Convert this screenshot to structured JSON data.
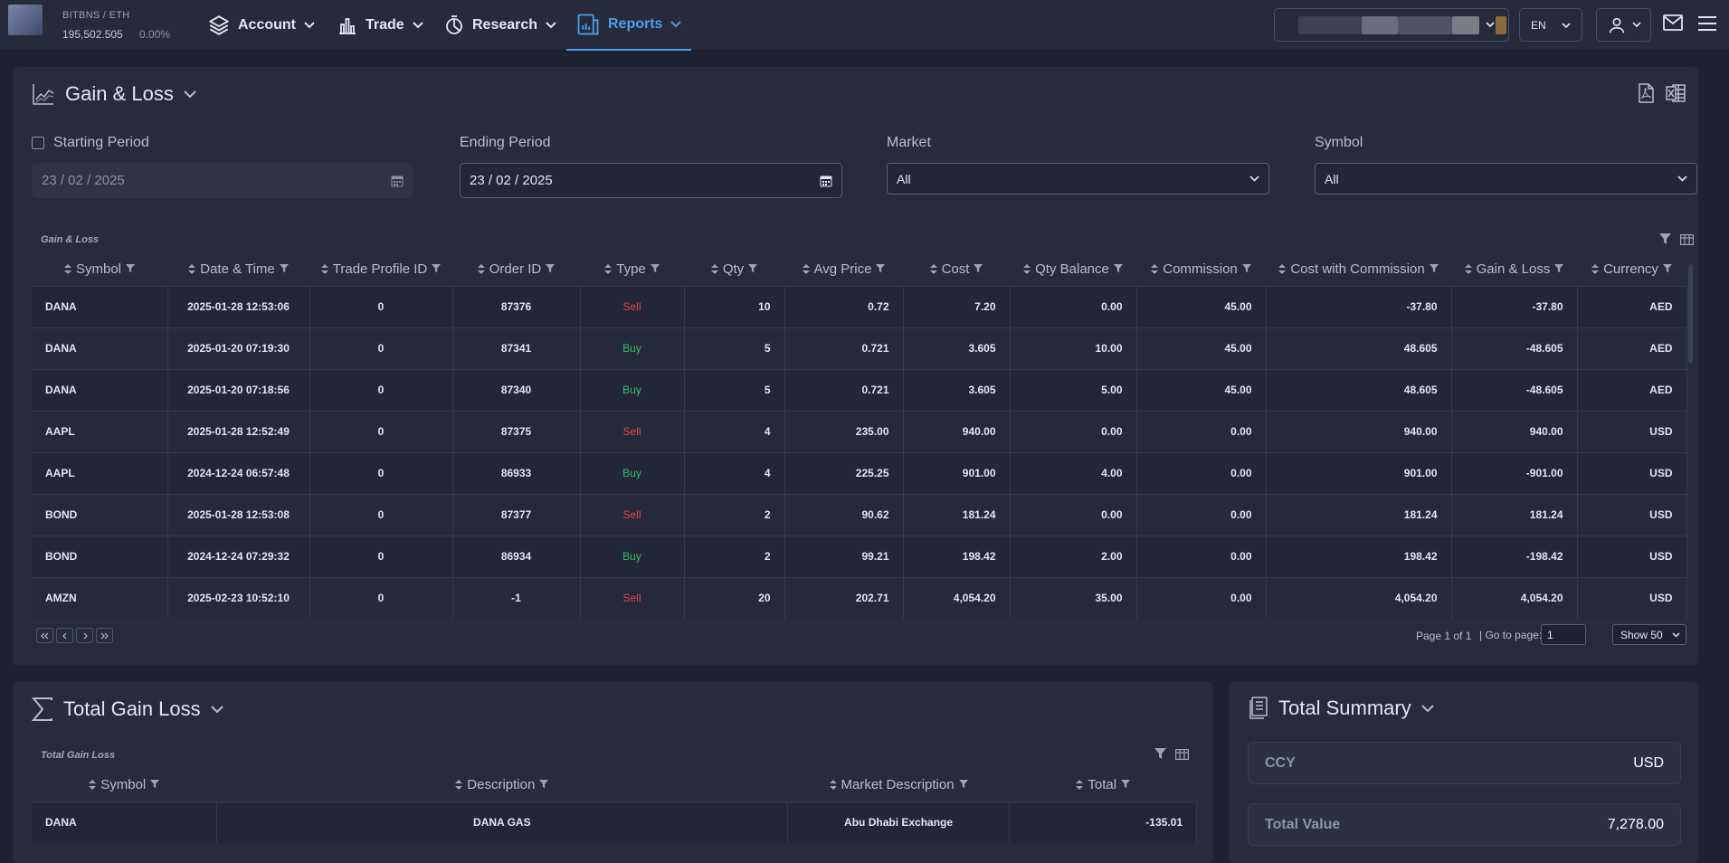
{
  "ticker": {
    "name": "BITBNS / ETH",
    "value": "195,502.505",
    "change": "0.00%"
  },
  "nav": [
    {
      "label": "Account",
      "icon": "layers-icon"
    },
    {
      "label": "Trade",
      "icon": "bar-chart-icon"
    },
    {
      "label": "Research",
      "icon": "pie-chart-icon"
    },
    {
      "label": "Reports",
      "icon": "report-icon",
      "active": true
    }
  ],
  "header": {
    "language": "EN"
  },
  "gain_loss": {
    "title": "Gain & Loss",
    "filters": {
      "starting_period_label": "Starting Period",
      "starting_period_value": "23 / 02 / 2025",
      "ending_period_label": "Ending Period",
      "ending_period_value": "23 / 02 / 2025",
      "market_label": "Market",
      "market_value": "All",
      "symbol_label": "Symbol",
      "symbol_value": "All"
    },
    "grid_caption": "Gain & Loss",
    "columns": [
      "Symbol",
      "Date & Time",
      "Trade Profile ID",
      "Order ID",
      "Type",
      "Qty",
      "Avg Price",
      "Cost",
      "Qty Balance",
      "Commission",
      "Cost with Commission",
      "Gain & Loss",
      "Currency"
    ],
    "rows": [
      [
        "DANA",
        "2025-01-28 12:53:06",
        "0",
        "87376",
        "Sell",
        "10",
        "0.72",
        "7.20",
        "0.00",
        "45.00",
        "-37.80",
        "-37.80",
        "AED"
      ],
      [
        "DANA",
        "2025-01-20 07:19:30",
        "0",
        "87341",
        "Buy",
        "5",
        "0.721",
        "3.605",
        "10.00",
        "45.00",
        "48.605",
        "-48.605",
        "AED"
      ],
      [
        "DANA",
        "2025-01-20 07:18:56",
        "0",
        "87340",
        "Buy",
        "5",
        "0.721",
        "3.605",
        "5.00",
        "45.00",
        "48.605",
        "-48.605",
        "AED"
      ],
      [
        "AAPL",
        "2025-01-28 12:52:49",
        "0",
        "87375",
        "Sell",
        "4",
        "235.00",
        "940.00",
        "0.00",
        "0.00",
        "940.00",
        "940.00",
        "USD"
      ],
      [
        "AAPL",
        "2024-12-24 06:57:48",
        "0",
        "86933",
        "Buy",
        "4",
        "225.25",
        "901.00",
        "4.00",
        "0.00",
        "901.00",
        "-901.00",
        "USD"
      ],
      [
        "BOND",
        "2025-01-28 12:53:08",
        "0",
        "87377",
        "Sell",
        "2",
        "90.62",
        "181.24",
        "0.00",
        "0.00",
        "181.24",
        "181.24",
        "USD"
      ],
      [
        "BOND",
        "2024-12-24 07:29:32",
        "0",
        "86934",
        "Buy",
        "2",
        "99.21",
        "198.42",
        "2.00",
        "0.00",
        "198.42",
        "-198.42",
        "USD"
      ],
      [
        "AMZN",
        "2025-02-23 10:52:10",
        "0",
        "-1",
        "Sell",
        "20",
        "202.71",
        "4,054.20",
        "35.00",
        "0.00",
        "4,054.20",
        "4,054.20",
        "USD"
      ]
    ],
    "pager": {
      "page_info": "Page 1 of 1",
      "goto_label": "| Go to page:",
      "goto_value": "1",
      "show_value": "Show 50"
    }
  },
  "total_gain_loss": {
    "title": "Total Gain Loss",
    "grid_caption": "Total Gain Loss",
    "columns": [
      "Symbol",
      "Description",
      "Market Description",
      "Total"
    ],
    "rows": [
      [
        "DANA",
        "DANA GAS",
        "Abu Dhabi Exchange",
        "-135.01"
      ]
    ]
  },
  "total_summary": {
    "title": "Total Summary",
    "ccy_label": "CCY",
    "ccy_value": "USD",
    "total_value_label": "Total Value",
    "total_value_value": "7,278.00"
  },
  "colors": {
    "accent": "#4a9eea",
    "sell": "#e5484d",
    "buy": "#2fbf71",
    "background": "#1f2230",
    "panel": "#282b3c"
  }
}
